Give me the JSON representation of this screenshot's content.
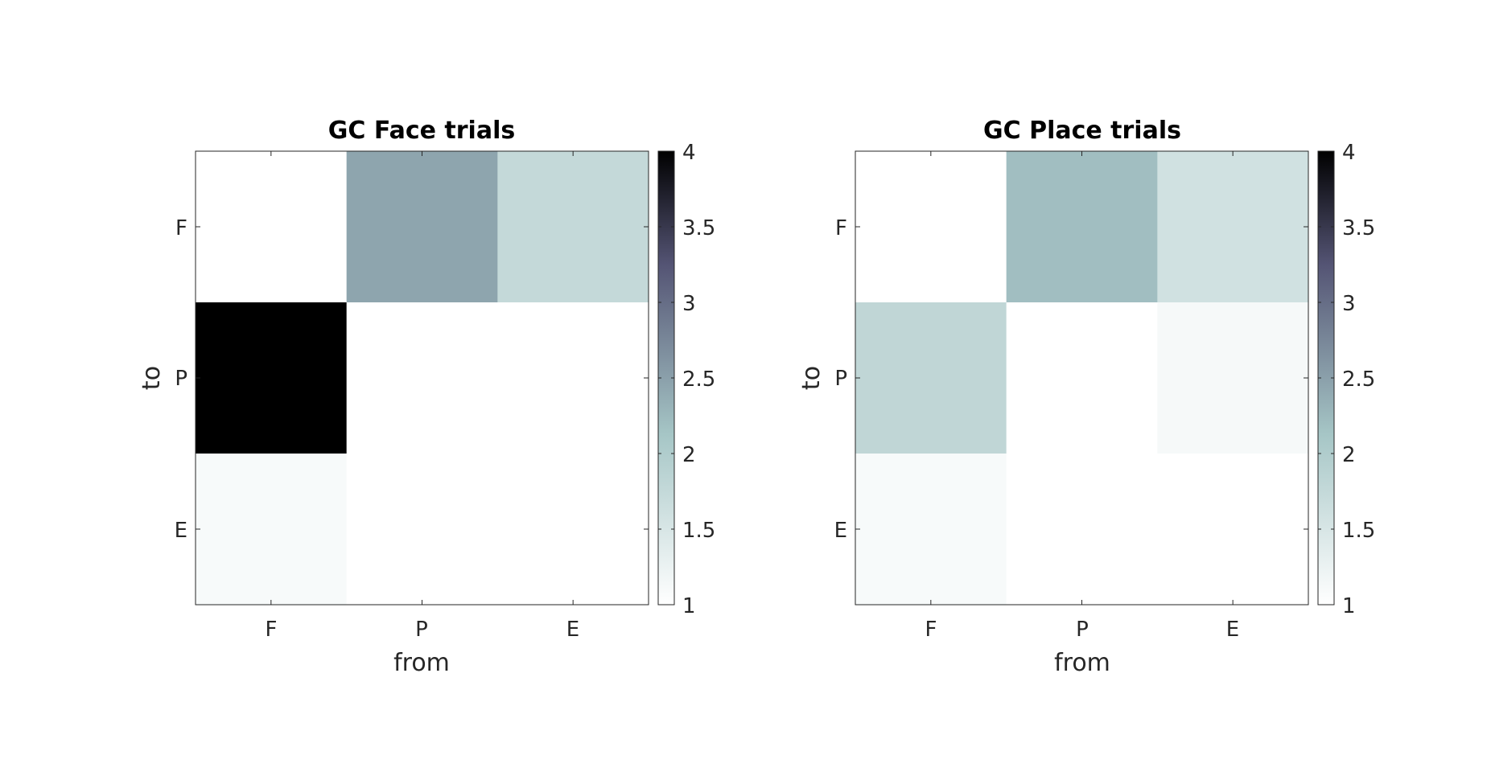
{
  "chart_data": [
    {
      "type": "heatmap",
      "title": "GC Face trials",
      "xlabel": "from",
      "ylabel": "to",
      "x_categories": [
        "F",
        "P",
        "E"
      ],
      "y_categories": [
        "F",
        "P",
        "E"
      ],
      "values": [
        [
          1.0,
          2.45,
          1.75
        ],
        [
          4.0,
          1.0,
          1.0
        ],
        [
          1.1,
          1.0,
          1.0
        ]
      ],
      "clim": [
        1,
        4
      ],
      "colorbar": {
        "ticks": [
          1,
          1.5,
          2,
          2.5,
          3,
          3.5,
          4
        ],
        "tick_labels": [
          "1",
          "1.5",
          "2",
          "2.5",
          "3",
          "3.5",
          "4"
        ]
      },
      "colormap": "bone (reversed)"
    },
    {
      "type": "heatmap",
      "title": "GC Place trials",
      "xlabel": "from",
      "ylabel": "to",
      "x_categories": [
        "F",
        "P",
        "E"
      ],
      "y_categories": [
        "F",
        "P",
        "E"
      ],
      "values": [
        [
          1.0,
          2.2,
          1.6
        ],
        [
          1.8,
          1.0,
          1.12
        ],
        [
          1.1,
          1.0,
          1.0
        ]
      ],
      "clim": [
        1,
        4
      ],
      "colorbar": {
        "ticks": [
          1,
          1.5,
          2,
          2.5,
          3,
          3.5,
          4
        ],
        "tick_labels": [
          "1",
          "1.5",
          "2",
          "2.5",
          "3",
          "3.5",
          "4"
        ]
      },
      "colormap": "bone (reversed)"
    }
  ]
}
